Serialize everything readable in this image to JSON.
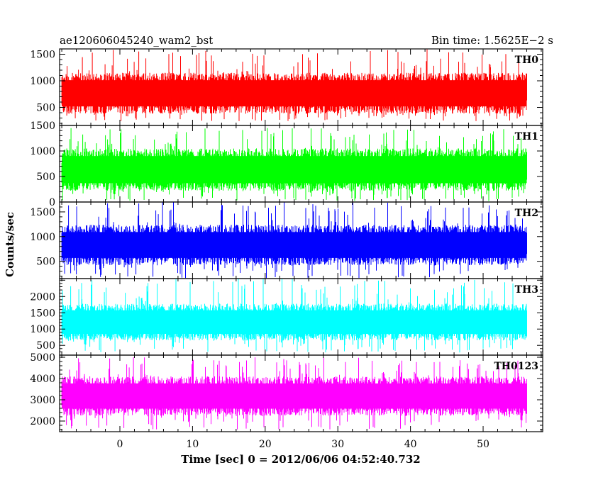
{
  "header": {
    "left": "ae120606045240_wam2_bst",
    "right": "Bin time: 1.5625E−2 s"
  },
  "chart_data": {
    "type": "line",
    "title": "ae120606045240_wam2_bst",
    "subtitle": "Bin time: 1.5625E−2 s",
    "xlabel": "Time [sec] 0 = 2012/06/06 04:52:40.732",
    "ylabel": "Counts/sec",
    "xlim": [
      -8.3,
      58.2
    ],
    "xticks": [
      0,
      10,
      20,
      30,
      40,
      50
    ],
    "data_x_range": [
      -8.0,
      56.0
    ],
    "grid": false,
    "legend": "none",
    "panels": [
      {
        "name": "TH0",
        "color": "#ff0000",
        "ylim": [
          160,
          1600
        ],
        "yticks": [
          500,
          1000,
          1500
        ],
        "typical_range": [
          380,
          1150
        ],
        "peak": 1600,
        "floor": 240
      },
      {
        "name": "TH1",
        "color": "#00ff00",
        "ylim": [
          0,
          1500
        ],
        "yticks": [
          0,
          500,
          1000,
          1500
        ],
        "typical_range": [
          220,
          1050
        ],
        "peak": 1450,
        "floor": 20
      },
      {
        "name": "TH2",
        "color": "#0000ff",
        "ylim": [
          150,
          1700
        ],
        "yticks": [
          500,
          1000,
          1500
        ],
        "typical_range": [
          420,
          1240
        ],
        "peak": 1700,
        "floor": 160
      },
      {
        "name": "TH3",
        "color": "#00ffff",
        "ylim": [
          200,
          2550
        ],
        "yticks": [
          500,
          1000,
          1500,
          2000
        ],
        "typical_range": [
          650,
          1780
        ],
        "peak": 2550,
        "floor": 280
      },
      {
        "name": "TH0123",
        "color": "#ff00ff",
        "ylim": [
          1500,
          5100
        ],
        "yticks": [
          2000,
          3000,
          4000,
          5000
        ],
        "typical_range": [
          2250,
          4100
        ],
        "peak": 5000,
        "floor": 1600
      }
    ]
  }
}
